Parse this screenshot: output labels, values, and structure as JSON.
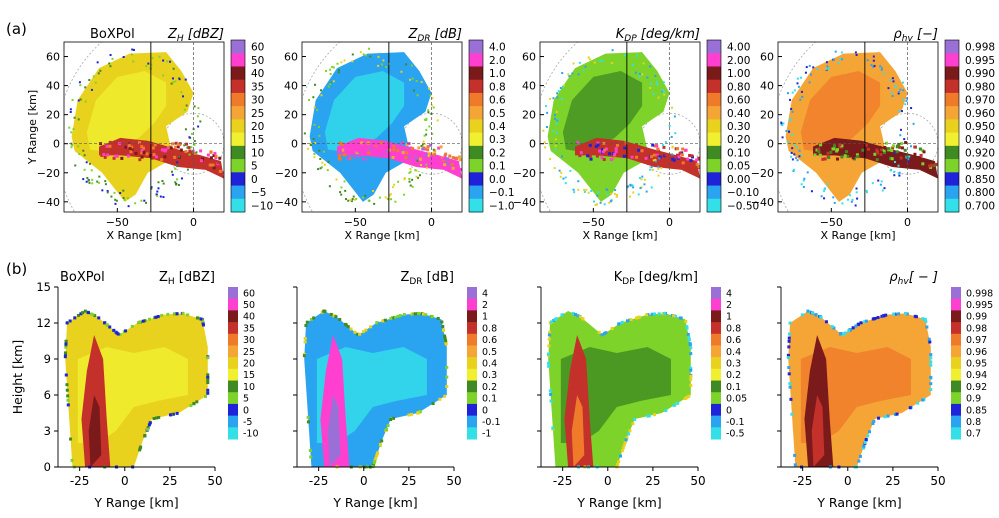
{
  "figure": {
    "row_labels": [
      "(a)",
      "(b)"
    ],
    "radar_name": "BoXPol"
  },
  "chart_data": [
    {
      "type": "heatmap",
      "row": "a",
      "variable": "ZH",
      "title_main": "Z",
      "title_sub": "H",
      "title_unit": "[dBZ]",
      "xlabel": "X Range [km]",
      "ylabel": "Y Range [km]",
      "xlim": [
        -85,
        20
      ],
      "ylim": [
        -47,
        70
      ],
      "xticks": [
        "−50",
        "0"
      ],
      "yticks": [
        "60",
        "40",
        "20",
        "0",
        "−20",
        "−40"
      ],
      "cross_section_x": -28,
      "colorbar": [
        "60",
        "50",
        "40",
        "35",
        "30",
        "25",
        "20",
        "15",
        "10",
        "5",
        "0",
        "−5",
        "−10"
      ]
    },
    {
      "type": "heatmap",
      "row": "a",
      "variable": "ZDR",
      "title_main": "Z",
      "title_sub": "DR",
      "title_unit": "[dB]",
      "xlabel": "X Range [km]",
      "ylabel": "",
      "xlim": [
        -85,
        20
      ],
      "ylim": [
        -47,
        70
      ],
      "xticks": [
        "−50",
        "0"
      ],
      "yticks": [
        "60",
        "40",
        "20",
        "0",
        "−20",
        "−40"
      ],
      "cross_section_x": -28,
      "colorbar": [
        "4.0",
        "2.0",
        "1.0",
        "0.8",
        "0.6",
        "0.5",
        "0.4",
        "0.3",
        "0.2",
        "0.1",
        "0.0",
        "−0.1",
        "−1.0"
      ]
    },
    {
      "type": "heatmap",
      "row": "a",
      "variable": "KDP",
      "title_main": "K",
      "title_sub": "DP",
      "title_unit": "[deg/km]",
      "xlabel": "X Range [km]",
      "ylabel": "",
      "xlim": [
        -85,
        20
      ],
      "ylim": [
        -47,
        70
      ],
      "xticks": [
        "−50",
        "0"
      ],
      "yticks": [
        "60",
        "40",
        "20",
        "0",
        "−20",
        "−40"
      ],
      "cross_section_x": -28,
      "colorbar": [
        "4.00",
        "2.00",
        "1.00",
        "0.80",
        "0.60",
        "0.40",
        "0.30",
        "0.20",
        "0.10",
        "0.05",
        "0.00",
        "−0.10",
        "−0.50"
      ]
    },
    {
      "type": "heatmap",
      "row": "a",
      "variable": "RHOHV",
      "title_main": "ρ",
      "title_sub": "hv",
      "title_unit": "[−]",
      "xlabel": "X Range [km]",
      "ylabel": "",
      "xlim": [
        -85,
        20
      ],
      "ylim": [
        -47,
        70
      ],
      "xticks": [
        "−50",
        "0"
      ],
      "yticks": [
        "60",
        "40",
        "20",
        "0",
        "−20",
        "−40"
      ],
      "cross_section_x": -28,
      "colorbar": [
        "0.998",
        "0.995",
        "0.990",
        "0.980",
        "0.970",
        "0.960",
        "0.950",
        "0.940",
        "0.920",
        "0.900",
        "0.850",
        "0.800",
        "0.700"
      ]
    },
    {
      "type": "heatmap",
      "row": "b",
      "variable": "ZH",
      "title_main": "Z",
      "title_sub": "H",
      "title_unit": " [dBZ]",
      "xlabel": "Y Range [km]",
      "ylabel": "Height [km]",
      "xlim": [
        -37,
        50
      ],
      "ylim": [
        0,
        15
      ],
      "xticks": [
        "-25",
        "0",
        "25",
        "50"
      ],
      "yticks": [
        "15",
        "12",
        "9",
        "6",
        "3",
        "0"
      ],
      "colorbar": [
        "60",
        "50",
        "40",
        "35",
        "30",
        "25",
        "20",
        "15",
        "10",
        "5",
        "0",
        "-5",
        "-10"
      ]
    },
    {
      "type": "heatmap",
      "row": "b",
      "variable": "ZDR",
      "title_main": "Z",
      "title_sub": "DR",
      "title_unit": " [dB]",
      "xlabel": "Y Range [km]",
      "ylabel": "",
      "xlim": [
        -37,
        50
      ],
      "ylim": [
        0,
        15
      ],
      "xticks": [
        "-25",
        "0",
        "25",
        "50"
      ],
      "yticks": [],
      "colorbar": [
        "4",
        "2",
        "1",
        "0.8",
        "0.6",
        "0.5",
        "0.4",
        "0.3",
        "0.2",
        "0.1",
        "0",
        "-0.1",
        "-1"
      ]
    },
    {
      "type": "heatmap",
      "row": "b",
      "variable": "KDP",
      "title_main": "K",
      "title_sub": "DP",
      "title_unit": " [deg/km]",
      "xlabel": "Y Range [km]",
      "ylabel": "",
      "xlim": [
        -37,
        50
      ],
      "ylim": [
        0,
        15
      ],
      "xticks": [
        "-25",
        "0",
        "25",
        "50"
      ],
      "yticks": [],
      "colorbar": [
        "4",
        "2",
        "1",
        "0.8",
        "0.6",
        "0.4",
        "0.3",
        "0.2",
        "0.1",
        "0.05",
        "0",
        "-0.1",
        "-0.5"
      ]
    },
    {
      "type": "heatmap",
      "row": "b",
      "variable": "RHOHV",
      "title_main": "ρ",
      "title_sub": "hv",
      "title_unit": "[ − ]",
      "xlabel": "Y Range [km]",
      "ylabel": "",
      "xlim": [
        -37,
        50
      ],
      "ylim": [
        0,
        15
      ],
      "xticks": [
        "-25",
        "0",
        "25",
        "50"
      ],
      "yticks": [],
      "colorbar": [
        "0.998",
        "0.995",
        "0.99",
        "0.98",
        "0.97",
        "0.96",
        "0.95",
        "0.94",
        "0.92",
        "0.9",
        "0.85",
        "0.8",
        "0.7"
      ]
    }
  ],
  "colorbar_colors": [
    "#9a6fd6",
    "#ff3fd0",
    "#7a1a1a",
    "#c4302a",
    "#ef7a2a",
    "#f5a536",
    "#e8d21e",
    "#f0f030",
    "#3f8a22",
    "#7ed32a",
    "#1f22d8",
    "#2aa3f0",
    "#33e0e8"
  ]
}
